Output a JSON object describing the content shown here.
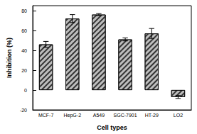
{
  "chart_data": {
    "type": "bar",
    "x_label": "Cell types",
    "y_label": "Inhibition (%)",
    "categories": [
      "MCF-7",
      "HepG-2",
      "A549",
      "SGC-7901",
      "HT-29",
      "LO2"
    ],
    "values": [
      46,
      72,
      76,
      51,
      57,
      -7
    ],
    "errors": [
      3,
      4,
      1,
      1.5,
      5,
      1.5
    ],
    "color": "#bdbdbd",
    "ylim": [
      -20,
      85
    ],
    "yticks": [
      -20,
      0,
      20,
      40,
      60,
      80
    ],
    "grid": false
  }
}
